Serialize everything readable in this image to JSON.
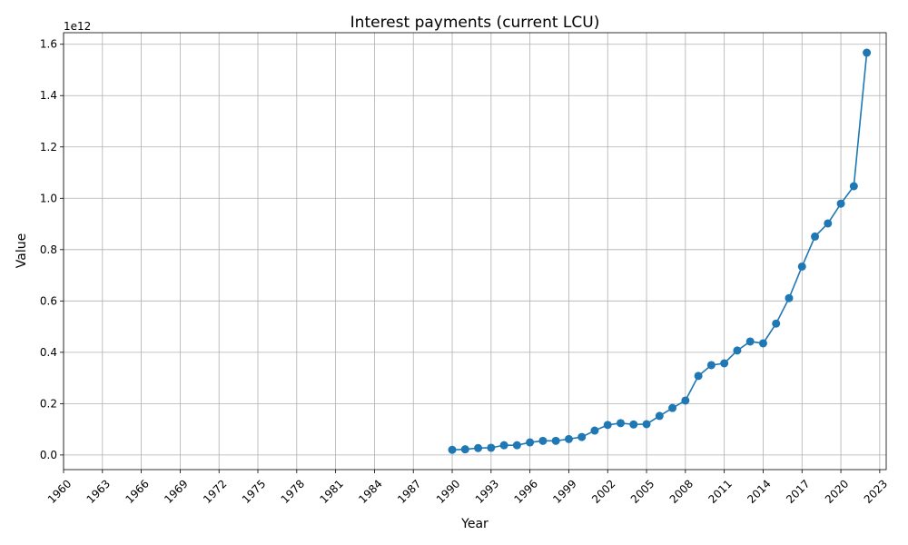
{
  "chart_data": {
    "type": "line",
    "title": "Interest payments (current LCU)",
    "xlabel": "Year",
    "ylabel": "Value",
    "y_offset_label": "1e12",
    "y_scale": 1000000000000.0,
    "xlim": [
      1960,
      2023.5
    ],
    "ylim": [
      -0.057,
      1.645
    ],
    "x_ticks": [
      1960,
      1963,
      1966,
      1969,
      1972,
      1975,
      1978,
      1981,
      1984,
      1987,
      1990,
      1993,
      1996,
      1999,
      2002,
      2005,
      2008,
      2011,
      2014,
      2017,
      2020,
      2023
    ],
    "y_ticks": [
      0.0,
      0.2,
      0.4,
      0.6,
      0.8,
      1.0,
      1.2,
      1.4,
      1.6
    ],
    "y_tick_labels": [
      "0.0",
      "0.2",
      "0.4",
      "0.6",
      "0.8",
      "1.0",
      "1.2",
      "1.4",
      "1.6"
    ],
    "grid": true,
    "series": [
      {
        "color": "#1f77b4",
        "marker": "circle",
        "x": [
          1990,
          1991,
          1992,
          1993,
          1994,
          1995,
          1996,
          1997,
          1998,
          1999,
          2000,
          2001,
          2002,
          2003,
          2004,
          2005,
          2006,
          2007,
          2008,
          2009,
          2010,
          2011,
          2012,
          2013,
          2014,
          2015,
          2016,
          2017,
          2018,
          2019,
          2020,
          2021,
          2022
        ],
        "y": [
          0.02,
          0.022,
          0.027,
          0.028,
          0.038,
          0.038,
          0.049,
          0.055,
          0.055,
          0.062,
          0.07,
          0.095,
          0.117,
          0.124,
          0.119,
          0.12,
          0.152,
          0.183,
          0.212,
          0.308,
          0.35,
          0.357,
          0.407,
          0.442,
          0.435,
          0.512,
          0.611,
          0.734,
          0.851,
          0.902,
          0.979,
          1.047,
          1.567
        ]
      }
    ]
  }
}
